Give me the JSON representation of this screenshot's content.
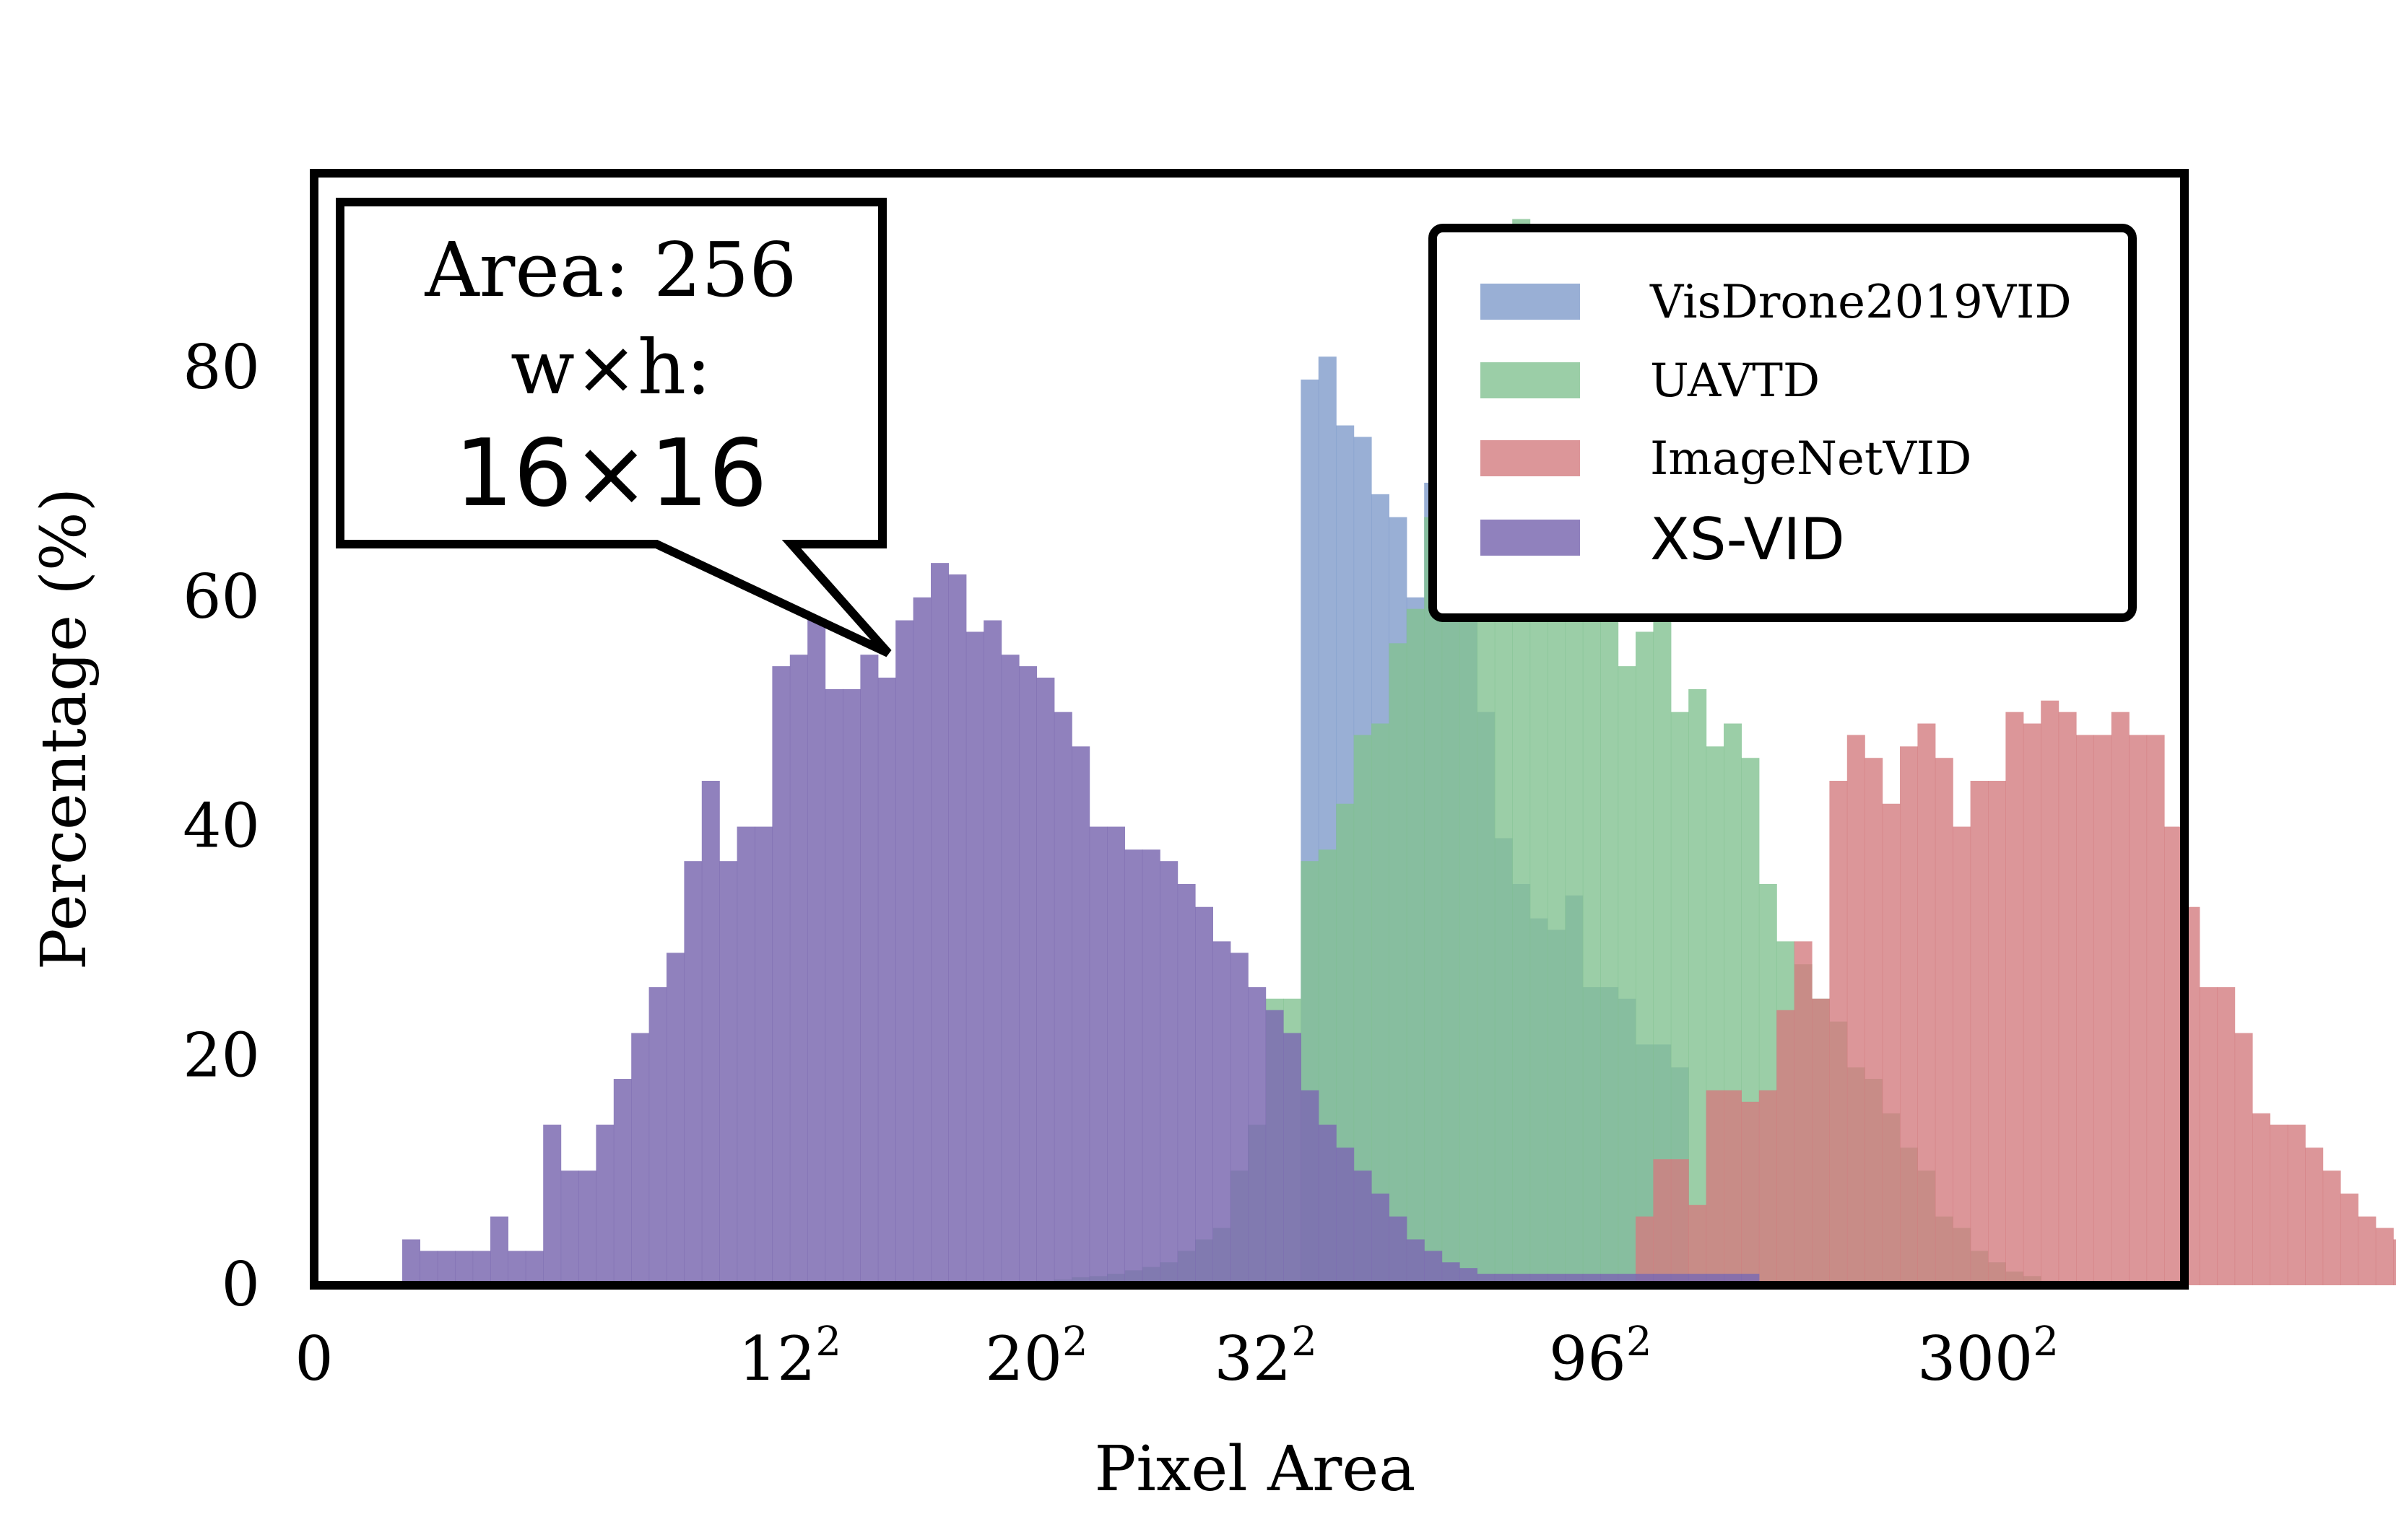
{
  "chart_data": {
    "type": "bar",
    "subtype": "overlaid-histogram",
    "xlabel": "Pixel Area",
    "ylabel": "Percentage (%)",
    "ylim": [
      0,
      97
    ],
    "y_ticks": [
      0,
      20,
      40,
      60,
      80
    ],
    "x_ticks": [
      {
        "label": "0",
        "base": "0",
        "exp": ""
      },
      {
        "label": "12²",
        "base": "12",
        "exp": "2"
      },
      {
        "label": "20²",
        "base": "20",
        "exp": "2"
      },
      {
        "label": "32²",
        "base": "32",
        "exp": "2"
      },
      {
        "label": "96²",
        "base": "96",
        "exp": "2"
      },
      {
        "label": "300²",
        "base": "300",
        "exp": "2"
      }
    ],
    "x_tick_positions_bins": [
      0,
      27,
      41,
      54,
      73,
      95
    ],
    "bins": 112,
    "grid": false,
    "legend_position": "top-right",
    "callout": {
      "line1": "Area: 256",
      "line2": "w×h:",
      "line3": "16×16"
    },
    "series": [
      {
        "name": "VisDrone2019VID",
        "color": "#7f9bcb",
        "start_bin": 56,
        "values": [
          79,
          81,
          75,
          74,
          69,
          67,
          60,
          70,
          60,
          64,
          50,
          39,
          35,
          32,
          31,
          34,
          26,
          26,
          25,
          21,
          21,
          19
        ]
      },
      {
        "name": "UAVTD",
        "color": "#82c291",
        "start_bin": 40,
        "values": [
          0.3,
          0.4,
          0.5,
          0.7,
          0.8,
          1,
          1.3,
          1.6,
          2,
          3,
          4,
          5,
          10,
          14,
          25,
          25,
          37,
          38,
          42,
          48,
          49,
          56,
          59,
          67,
          69,
          79,
          88,
          85,
          93,
          81,
          65,
          68,
          63,
          60,
          54,
          57,
          80,
          50,
          52,
          47,
          49,
          46,
          35,
          30,
          28,
          25,
          23,
          19,
          18,
          15,
          12,
          10,
          6,
          5,
          3,
          2,
          1.2,
          0.8,
          0.4,
          0.2
        ]
      },
      {
        "name": "ImageNetVID",
        "color": "#d37c80",
        "start_bin": 75,
        "values": [
          6,
          11,
          11,
          7,
          17,
          17,
          16,
          17,
          24,
          30,
          25,
          44,
          48,
          46,
          42,
          47,
          49,
          46,
          40,
          44,
          44,
          50,
          49,
          51,
          50,
          48,
          48,
          50,
          48,
          48,
          40,
          33,
          26,
          26,
          22,
          15,
          14,
          14,
          12,
          10,
          8,
          6,
          5,
          4,
          3,
          2,
          1.5,
          1,
          1,
          0.5,
          0.3,
          1
        ]
      },
      {
        "name": "XS-VID",
        "color": "#7c6bb1",
        "start_bin": 5,
        "values": [
          4,
          3,
          3,
          3,
          3,
          6,
          3,
          3,
          14,
          10,
          10,
          14,
          18,
          22,
          26,
          29,
          37,
          44,
          37,
          40,
          40,
          54,
          55,
          60,
          52,
          52,
          55,
          53,
          58,
          60,
          63,
          62,
          57,
          58,
          55,
          54,
          53,
          50,
          47,
          40,
          40,
          38,
          38,
          37,
          35,
          33,
          30,
          29,
          26,
          24,
          22,
          17,
          14,
          12,
          10,
          8,
          6,
          4,
          3,
          2,
          1.5,
          1,
          1,
          1,
          1,
          1,
          1,
          1,
          1,
          1,
          1,
          1,
          1,
          1,
          1,
          1,
          1
        ]
      }
    ]
  }
}
